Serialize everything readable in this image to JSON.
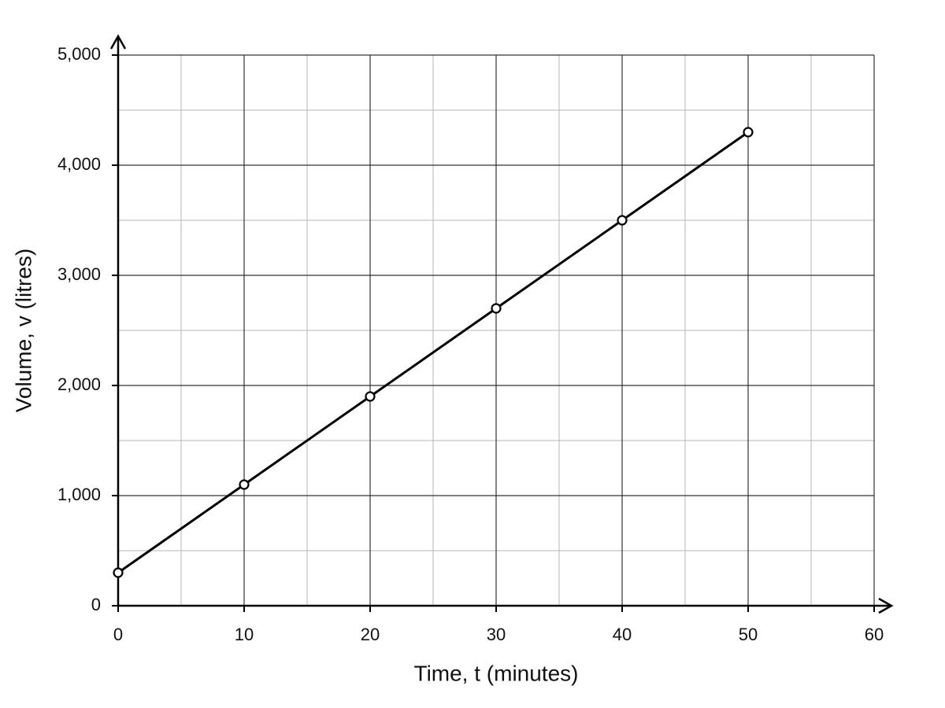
{
  "chart_data": {
    "type": "line",
    "x_label": "Time, t (minutes)",
    "y_label": "Volume, v (litres)",
    "x": [
      0,
      10,
      20,
      30,
      40,
      50
    ],
    "values": [
      300,
      1100,
      1900,
      2700,
      3500,
      4300
    ],
    "color": "#000000",
    "xlim": [
      0,
      60
    ],
    "xticks": [
      0,
      10,
      20,
      30,
      40,
      50,
      60
    ],
    "ylim": [
      0,
      5000
    ],
    "yticks": [
      0,
      {
        "value": 1000,
        "label": "1,000"
      },
      {
        "value": 2000,
        "label": "2,000"
      },
      {
        "value": 3000,
        "label": "3,000"
      },
      {
        "value": 4000,
        "label": "4,000"
      },
      {
        "value": 5000,
        "label": "5,000"
      }
    ],
    "grid": true,
    "minor_grid": true,
    "markers": true
  }
}
